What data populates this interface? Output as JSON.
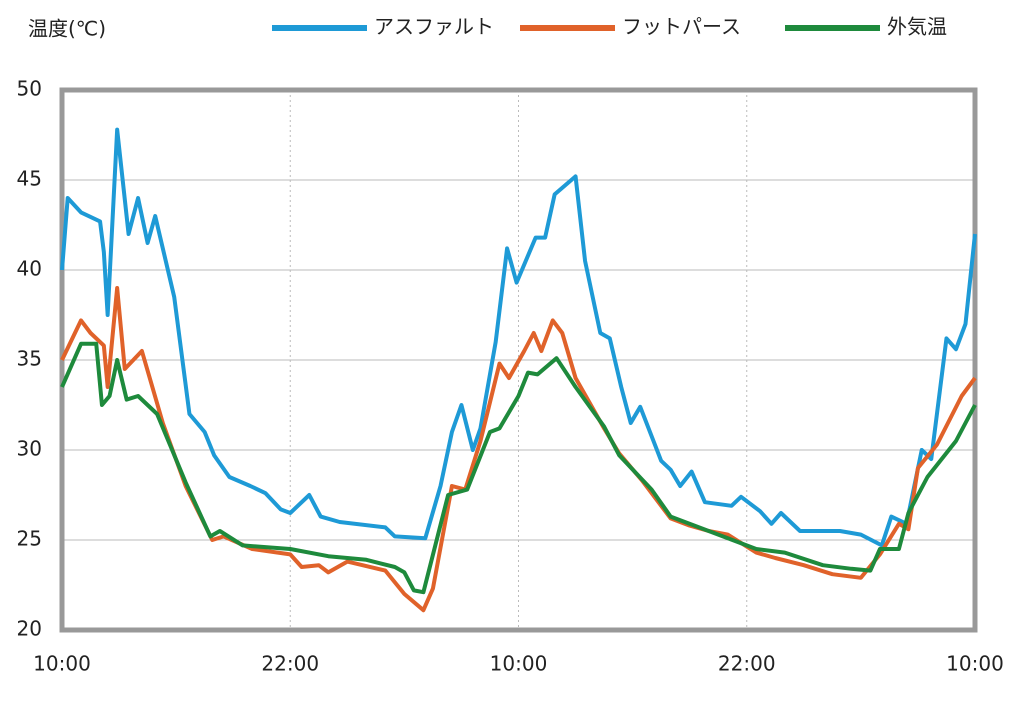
{
  "chart_data": {
    "type": "line",
    "ylabel": "温度(℃)",
    "xlim": [
      0,
      48
    ],
    "xticks": [
      {
        "value": 0,
        "label": "10:00"
      },
      {
        "value": 12,
        "label": "22:00"
      },
      {
        "value": 24,
        "label": "10:00"
      },
      {
        "value": 36,
        "label": "22:00"
      },
      {
        "value": 48,
        "label": "10:00"
      }
    ],
    "ylim": [
      20,
      50
    ],
    "yticks": [
      20,
      25,
      30,
      35,
      40,
      45,
      50
    ],
    "grid": true,
    "legend": "top",
    "series": [
      {
        "name": "アスファルト",
        "color": "#1e9ad6",
        "x": [
          0,
          0.3,
          1,
          2,
          2.2,
          2.4,
          2.9,
          3.5,
          4,
          4.5,
          4.9,
          5.9,
          6.7,
          7.5,
          8,
          8.8,
          9.9,
          10.7,
          11.5,
          12,
          13,
          13.6,
          14.6,
          17,
          17.5,
          19.1,
          19.9,
          20.5,
          21,
          21.6,
          22,
          22.8,
          23.4,
          23.9,
          24.9,
          25.4,
          25.9,
          27,
          27.5,
          28.3,
          28.8,
          29.4,
          29.9,
          30.4,
          31.5,
          32,
          32.5,
          33.1,
          33.8,
          35.2,
          35.7,
          36.7,
          37.3,
          37.8,
          38.8,
          40.9,
          42,
          43.1,
          43.6,
          44.4,
          45.2,
          45.7,
          46.5,
          47,
          47.5,
          48
        ],
        "values": [
          40,
          44,
          43.2,
          42.7,
          41,
          37.5,
          47.8,
          42,
          44,
          41.5,
          43,
          38.5,
          32,
          31,
          29.7,
          28.5,
          28,
          27.6,
          26.7,
          26.5,
          27.5,
          26.3,
          26,
          25.7,
          25.2,
          25.1,
          28,
          31,
          32.5,
          30,
          31.2,
          36,
          41.2,
          39.3,
          41.8,
          41.8,
          44.2,
          45.2,
          40.5,
          36.5,
          36.2,
          33.5,
          31.5,
          32.4,
          29.4,
          28.9,
          28,
          28.8,
          27.1,
          26.9,
          27.4,
          26.6,
          25.9,
          26.5,
          25.5,
          25.5,
          25.3,
          24.7,
          26.3,
          25.9,
          30,
          29.5,
          36.2,
          35.6,
          37,
          42
        ]
      },
      {
        "name": "フットパース",
        "color": "#e0622a",
        "x": [
          0,
          1,
          1.5,
          2.2,
          2.4,
          2.9,
          3.3,
          4.2,
          5.3,
          6.5,
          7.9,
          8.5,
          10,
          12,
          12.6,
          13.5,
          14,
          15,
          17,
          18,
          19,
          19.5,
          20.5,
          21.2,
          22,
          23,
          23.5,
          24.3,
          24.8,
          25.2,
          25.8,
          26.3,
          27,
          28.5,
          29.3,
          30.5,
          32,
          33,
          34,
          35,
          36.5,
          37.5,
          39,
          40.5,
          42,
          43,
          44,
          44.5,
          45,
          46,
          47.3,
          48
        ],
        "values": [
          35,
          37.2,
          36.5,
          35.8,
          33.5,
          39,
          34.5,
          35.5,
          31.5,
          28,
          25,
          25.2,
          24.5,
          24.2,
          23.5,
          23.6,
          23.2,
          23.8,
          23.3,
          22,
          21.1,
          22.3,
          28,
          27.8,
          30.5,
          34.8,
          34,
          35.5,
          36.5,
          35.5,
          37.2,
          36.5,
          34,
          31.2,
          29.8,
          28.3,
          26.2,
          25.8,
          25.5,
          25.3,
          24.3,
          24,
          23.6,
          23.1,
          22.9,
          24.2,
          25.9,
          25.6,
          29,
          30.3,
          33,
          34
        ]
      },
      {
        "name": "外気温",
        "color": "#1e8a3c",
        "x": [
          0,
          1,
          1.8,
          2.1,
          2.5,
          2.9,
          3.4,
          4,
          5,
          6.5,
          7.8,
          8.3,
          9.5,
          12,
          14,
          16,
          17.5,
          18,
          18.5,
          19,
          20.3,
          21.3,
          22.5,
          23,
          24,
          24.5,
          25,
          26,
          27,
          28.5,
          29.3,
          31,
          32,
          34,
          36.5,
          38,
          40,
          41.5,
          42.5,
          43,
          44,
          44.5,
          45.5,
          47,
          48
        ],
        "values": [
          33.5,
          35.9,
          35.9,
          32.5,
          33,
          35,
          32.8,
          33,
          32,
          28.2,
          25.2,
          25.5,
          24.7,
          24.5,
          24.1,
          23.9,
          23.5,
          23.2,
          22.2,
          22.1,
          27.5,
          27.8,
          31,
          31.2,
          33,
          34.3,
          34.2,
          35.1,
          33.5,
          31.3,
          29.7,
          27.8,
          26.3,
          25.5,
          24.5,
          24.3,
          23.6,
          23.4,
          23.3,
          24.5,
          24.5,
          26.5,
          28.5,
          30.5,
          32.5
        ]
      }
    ]
  }
}
